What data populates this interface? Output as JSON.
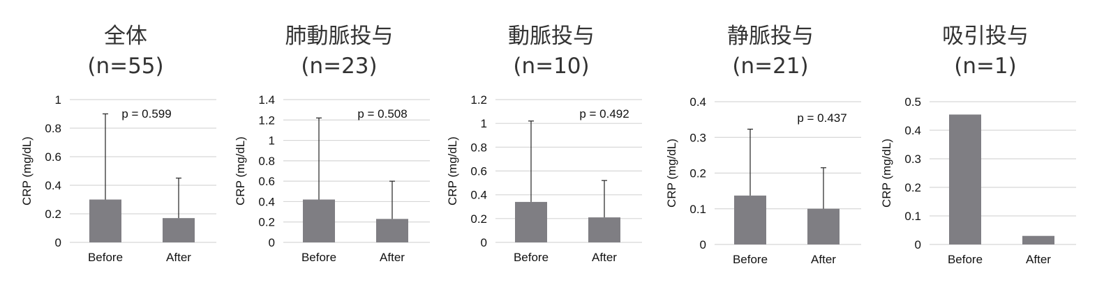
{
  "chart_data": [
    {
      "type": "bar",
      "title": "全体",
      "subtitle": "(n=55)",
      "ylabel": "CRP (mg/dL)",
      "categories": [
        "Before",
        "After"
      ],
      "values": [
        0.3,
        0.17
      ],
      "error_upper": [
        0.9,
        0.45
      ],
      "ylim": [
        0,
        1
      ],
      "yticks": [
        0,
        0.2,
        0.4,
        0.6,
        0.8,
        1
      ],
      "ytick_labels": [
        "0",
        "0.2",
        "0.4",
        "0.6",
        "0.8",
        "1"
      ],
      "grid": true,
      "annotation": "p = 0.599",
      "bar_color": "#7f7e83"
    },
    {
      "type": "bar",
      "title": "肺動脈投与",
      "subtitle": "(n=23)",
      "ylabel": "CRP (mg/dL)",
      "categories": [
        "Before",
        "After"
      ],
      "values": [
        0.42,
        0.23
      ],
      "error_upper": [
        1.22,
        0.6
      ],
      "ylim": [
        0,
        1.4
      ],
      "yticks": [
        0,
        0.2,
        0.4,
        0.6,
        0.8,
        1,
        1.2,
        1.4
      ],
      "ytick_labels": [
        "0",
        "0.2",
        "0.4",
        "0.6",
        "0.8",
        "1",
        "1.2",
        "1.4"
      ],
      "grid": true,
      "annotation": "p = 0.508",
      "bar_color": "#7f7e83"
    },
    {
      "type": "bar",
      "title": "動脈投与",
      "subtitle": "(n=10)",
      "ylabel": "CRP (mg/dL)",
      "categories": [
        "Before",
        "After"
      ],
      "values": [
        0.34,
        0.21
      ],
      "error_upper": [
        1.02,
        0.52
      ],
      "ylim": [
        0,
        1.2
      ],
      "yticks": [
        0,
        0.2,
        0.4,
        0.6,
        0.8,
        1,
        1.2
      ],
      "ytick_labels": [
        "0",
        "0.2",
        "0.4",
        "0.6",
        "0.8",
        "1",
        "1.2"
      ],
      "grid": true,
      "annotation": "p = 0.492",
      "bar_color": "#7f7e83"
    },
    {
      "type": "bar",
      "title": "静脈投与",
      "subtitle": "(n=21)",
      "ylabel": "CRP (mg/dL)",
      "categories": [
        "Before",
        "After"
      ],
      "values": [
        0.137,
        0.1
      ],
      "error_upper": [
        0.323,
        0.215
      ],
      "ylim": [
        0,
        0.4
      ],
      "yticks": [
        0,
        0.1,
        0.2,
        0.3,
        0.4
      ],
      "ytick_labels": [
        "0",
        "0.1",
        "0.2",
        "0.3",
        "0.4"
      ],
      "grid": true,
      "annotation": "p = 0.437",
      "bar_color": "#7f7e83"
    },
    {
      "type": "bar",
      "title": "吸引投与",
      "subtitle": "(n=1)",
      "ylabel": "CRP (mg/dL)",
      "categories": [
        "Before",
        "After"
      ],
      "values": [
        0.455,
        0.03
      ],
      "error_upper": [
        null,
        null
      ],
      "ylim": [
        0,
        0.5
      ],
      "yticks": [
        0,
        0.1,
        0.2,
        0.3,
        0.4,
        0.5
      ],
      "ytick_labels": [
        "0",
        "0.1",
        "0.2",
        "0.3",
        "0.4",
        "0.5"
      ],
      "grid": true,
      "annotation": "",
      "bar_color": "#7f7e83"
    }
  ]
}
